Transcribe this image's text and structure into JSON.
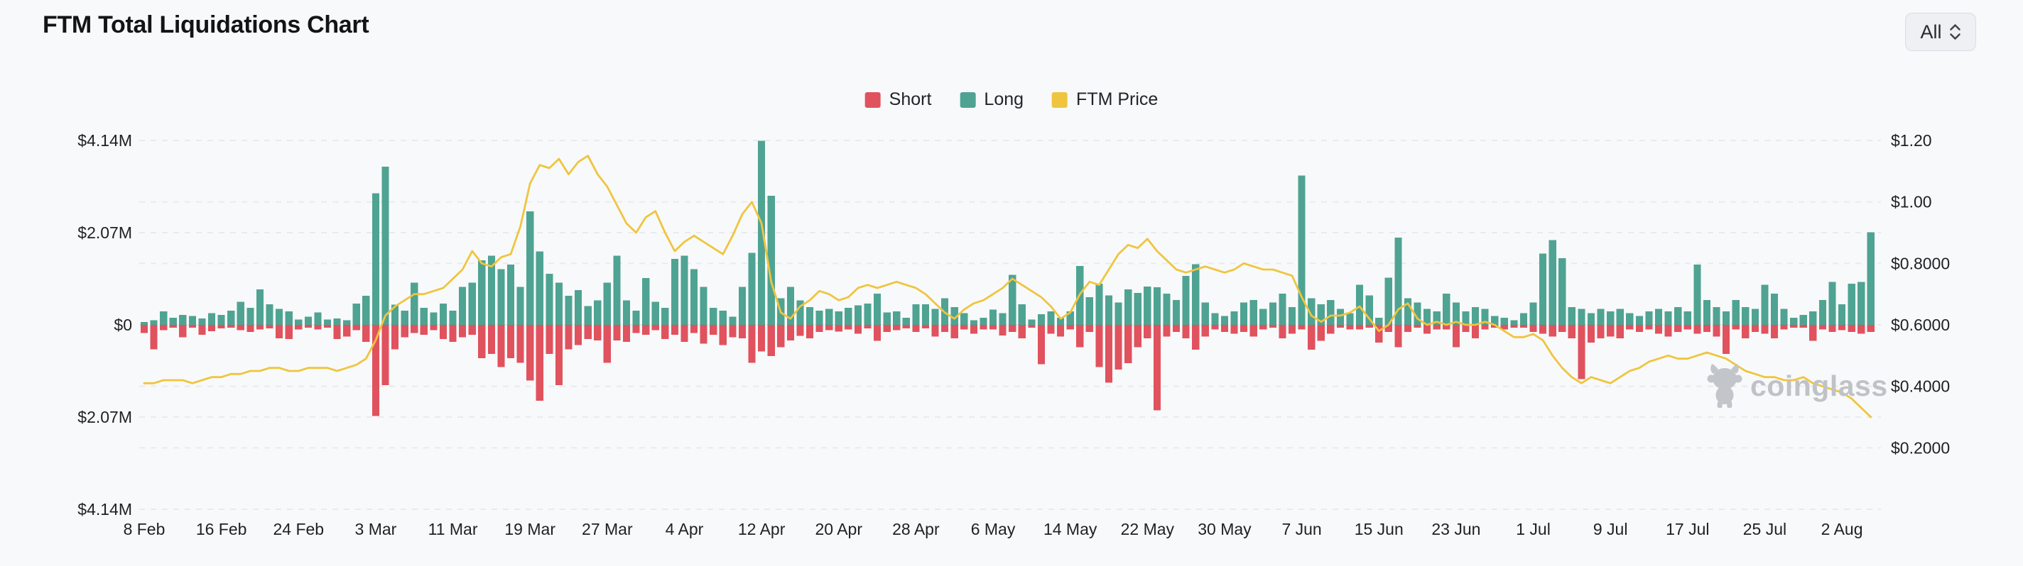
{
  "header": {
    "title": "FTM Total Liquidations Chart",
    "range_selector": {
      "value": "All"
    }
  },
  "legend": {
    "items": [
      {
        "label": "Short",
        "color": "#E0525E"
      },
      {
        "label": "Long",
        "color": "#4FA392"
      },
      {
        "label": "FTM Price",
        "color": "#EFC53F"
      }
    ]
  },
  "watermark": {
    "text": "coinglass"
  },
  "chart_data": {
    "type": "bar",
    "title": "FTM Total Liquidations Chart",
    "grid": "dashed horizontal",
    "legend_position": "top-center",
    "left_axis": {
      "tick_labels": [
        "$4.14M",
        "$2.07M",
        "$0",
        "$2.07M",
        "$4.14M"
      ],
      "max_abs_usd": 4140000,
      "zero_centered": true
    },
    "right_axis": {
      "tick_labels": [
        "$1.20",
        "$1.00",
        "$0.8000",
        "$0.6000",
        "$0.4000",
        "$0.2000"
      ],
      "min": 0,
      "max": 1.2
    },
    "x_tick_labels": [
      "8 Feb",
      "16 Feb",
      "24 Feb",
      "3 Mar",
      "11 Mar",
      "19 Mar",
      "27 Mar",
      "4 Apr",
      "12 Apr",
      "20 Apr",
      "28 Apr",
      "6 May",
      "14 May",
      "22 May",
      "30 May",
      "7 Jun",
      "15 Jun",
      "23 Jun",
      "1 Jul",
      "9 Jul",
      "17 Jul",
      "25 Jul",
      "2 Aug"
    ],
    "x_tick_day_index": [
      0,
      8,
      16,
      24,
      32,
      40,
      48,
      56,
      64,
      72,
      80,
      88,
      96,
      104,
      112,
      120,
      128,
      136,
      144,
      152,
      160,
      168,
      176
    ],
    "days_total": 180,
    "series": [
      {
        "name": "Long",
        "type": "bar",
        "direction": "up",
        "color": "#4FA392",
        "unit": "M_USD",
        "values": [
          0.06,
          0.1,
          0.3,
          0.16,
          0.22,
          0.2,
          0.14,
          0.26,
          0.22,
          0.32,
          0.52,
          0.38,
          0.8,
          0.46,
          0.36,
          0.3,
          0.12,
          0.18,
          0.28,
          0.12,
          0.14,
          0.1,
          0.48,
          0.65,
          2.95,
          3.55,
          0.45,
          0.32,
          0.95,
          0.38,
          0.28,
          0.48,
          0.32,
          0.85,
          0.95,
          1.45,
          1.55,
          1.25,
          1.35,
          0.85,
          2.55,
          1.65,
          1.15,
          0.95,
          0.65,
          0.78,
          0.42,
          0.55,
          0.95,
          1.55,
          0.55,
          0.32,
          1.05,
          0.52,
          0.38,
          1.48,
          1.55,
          1.25,
          0.85,
          0.38,
          0.32,
          0.18,
          0.85,
          1.62,
          4.13,
          2.9,
          0.6,
          0.85,
          0.55,
          0.4,
          0.32,
          0.36,
          0.3,
          0.38,
          0.44,
          0.48,
          0.7,
          0.28,
          0.3,
          0.16,
          0.46,
          0.46,
          0.36,
          0.6,
          0.4,
          0.26,
          0.1,
          0.16,
          0.34,
          0.26,
          1.12,
          0.46,
          0.12,
          0.24,
          0.3,
          0.16,
          0.3,
          1.32,
          0.62,
          0.92,
          0.66,
          0.5,
          0.8,
          0.72,
          0.86,
          0.84,
          0.7,
          0.56,
          1.1,
          1.36,
          0.5,
          0.26,
          0.2,
          0.3,
          0.5,
          0.56,
          0.36,
          0.5,
          0.7,
          0.4,
          3.35,
          0.6,
          0.46,
          0.56,
          0.36,
          0.26,
          0.9,
          0.66,
          0.16,
          1.06,
          1.96,
          0.6,
          0.5,
          0.36,
          0.3,
          0.7,
          0.5,
          0.3,
          0.4,
          0.36,
          0.2,
          0.16,
          0.1,
          0.26,
          0.5,
          1.6,
          1.9,
          1.5,
          0.4,
          0.36,
          0.26,
          0.36,
          0.3,
          0.36,
          0.26,
          0.2,
          0.3,
          0.36,
          0.3,
          0.4,
          0.3,
          1.35,
          0.56,
          0.4,
          0.3,
          0.56,
          0.4,
          0.36,
          0.9,
          0.7,
          0.36,
          0.16,
          0.22,
          0.3,
          0.56,
          0.96,
          0.46,
          0.92,
          0.96,
          2.08
        ]
      },
      {
        "name": "Short",
        "type": "bar",
        "direction": "down",
        "color": "#E0525E",
        "unit": "M_USD",
        "values": [
          0.18,
          0.55,
          0.12,
          0.06,
          0.28,
          0.06,
          0.22,
          0.14,
          0.08,
          0.06,
          0.12,
          0.16,
          0.1,
          0.08,
          0.3,
          0.32,
          0.1,
          0.06,
          0.1,
          0.06,
          0.32,
          0.26,
          0.12,
          0.38,
          2.05,
          1.35,
          0.55,
          0.28,
          0.18,
          0.22,
          0.12,
          0.32,
          0.38,
          0.28,
          0.22,
          0.75,
          0.65,
          0.95,
          0.75,
          0.85,
          1.25,
          1.7,
          0.65,
          1.35,
          0.55,
          0.45,
          0.32,
          0.35,
          0.85,
          0.35,
          0.38,
          0.18,
          0.22,
          0.12,
          0.32,
          0.22,
          0.38,
          0.18,
          0.42,
          0.22,
          0.45,
          0.28,
          0.3,
          0.85,
          0.6,
          0.7,
          0.5,
          0.35,
          0.25,
          0.3,
          0.16,
          0.12,
          0.15,
          0.1,
          0.2,
          0.08,
          0.36,
          0.16,
          0.12,
          0.08,
          0.16,
          0.08,
          0.26,
          0.16,
          0.3,
          0.1,
          0.2,
          0.1,
          0.1,
          0.24,
          0.16,
          0.3,
          0.06,
          0.88,
          0.2,
          0.26,
          0.1,
          0.5,
          0.16,
          0.95,
          1.3,
          1.0,
          0.86,
          0.5,
          0.3,
          1.92,
          0.26,
          0.16,
          0.3,
          0.56,
          0.26,
          0.1,
          0.16,
          0.2,
          0.16,
          0.26,
          0.1,
          0.06,
          0.3,
          0.2,
          0.1,
          0.56,
          0.36,
          0.2,
          0.06,
          0.1,
          0.1,
          0.06,
          0.4,
          0.16,
          0.5,
          0.16,
          0.06,
          0.2,
          0.1,
          0.1,
          0.5,
          0.16,
          0.3,
          0.1,
          0.06,
          0.1,
          0.06,
          0.06,
          0.16,
          0.2,
          0.26,
          0.16,
          0.3,
          1.22,
          0.4,
          0.3,
          0.26,
          0.3,
          0.1,
          0.16,
          0.1,
          0.2,
          0.26,
          0.16,
          0.1,
          0.2,
          0.16,
          0.26,
          0.65,
          0.1,
          0.3,
          0.16,
          0.2,
          0.3,
          0.1,
          0.06,
          0.06,
          0.36,
          0.1,
          0.16,
          0.12,
          0.16,
          0.2,
          0.16
        ]
      },
      {
        "name": "FTM Price",
        "type": "line",
        "axis": "right",
        "color": "#EFC53F",
        "unit": "USD",
        "values": [
          0.41,
          0.41,
          0.42,
          0.42,
          0.42,
          0.41,
          0.42,
          0.43,
          0.43,
          0.44,
          0.44,
          0.45,
          0.45,
          0.46,
          0.46,
          0.45,
          0.45,
          0.46,
          0.46,
          0.46,
          0.45,
          0.46,
          0.47,
          0.49,
          0.55,
          0.63,
          0.66,
          0.68,
          0.7,
          0.7,
          0.71,
          0.72,
          0.75,
          0.78,
          0.84,
          0.8,
          0.79,
          0.82,
          0.83,
          0.92,
          1.06,
          1.12,
          1.11,
          1.14,
          1.09,
          1.13,
          1.15,
          1.09,
          1.05,
          0.99,
          0.93,
          0.9,
          0.95,
          0.97,
          0.9,
          0.84,
          0.87,
          0.89,
          0.87,
          0.85,
          0.83,
          0.89,
          0.96,
          1.0,
          0.93,
          0.74,
          0.64,
          0.62,
          0.66,
          0.68,
          0.71,
          0.7,
          0.68,
          0.69,
          0.72,
          0.73,
          0.72,
          0.73,
          0.74,
          0.73,
          0.72,
          0.7,
          0.67,
          0.64,
          0.62,
          0.65,
          0.67,
          0.68,
          0.7,
          0.72,
          0.75,
          0.73,
          0.71,
          0.69,
          0.66,
          0.62,
          0.64,
          0.7,
          0.74,
          0.73,
          0.78,
          0.83,
          0.86,
          0.85,
          0.88,
          0.84,
          0.81,
          0.78,
          0.77,
          0.78,
          0.79,
          0.78,
          0.77,
          0.78,
          0.8,
          0.79,
          0.78,
          0.78,
          0.77,
          0.76,
          0.69,
          0.63,
          0.61,
          0.63,
          0.63,
          0.64,
          0.66,
          0.62,
          0.58,
          0.6,
          0.65,
          0.67,
          0.62,
          0.6,
          0.61,
          0.6,
          0.61,
          0.6,
          0.6,
          0.61,
          0.6,
          0.58,
          0.56,
          0.56,
          0.57,
          0.55,
          0.5,
          0.46,
          0.43,
          0.41,
          0.43,
          0.42,
          0.41,
          0.43,
          0.45,
          0.46,
          0.48,
          0.49,
          0.5,
          0.49,
          0.49,
          0.5,
          0.51,
          0.5,
          0.49,
          0.47,
          0.45,
          0.44,
          0.43,
          0.43,
          0.42,
          0.42,
          0.43,
          0.41,
          0.4,
          0.39,
          0.38,
          0.36,
          0.33,
          0.3
        ]
      }
    ]
  }
}
